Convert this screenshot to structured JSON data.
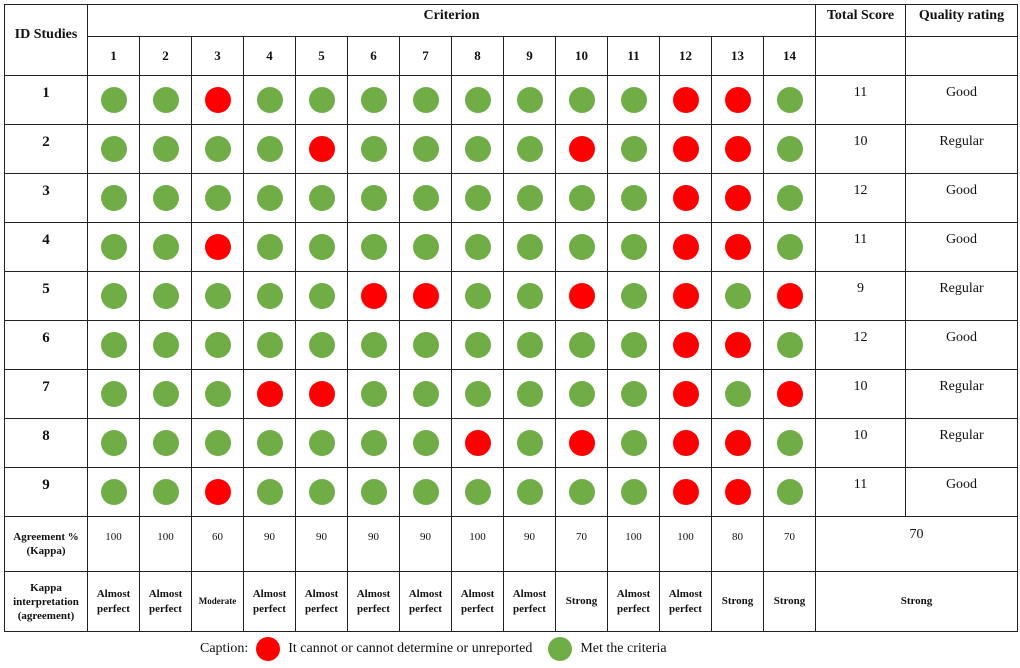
{
  "header": {
    "id_studies": "ID Studies",
    "criterion": "Criterion",
    "total_score": "Total Score",
    "quality_rating": "Quality rating",
    "criteria_numbers": [
      "1",
      "2",
      "3",
      "4",
      "5",
      "6",
      "7",
      "8",
      "9",
      "10",
      "11",
      "12",
      "13",
      "14"
    ]
  },
  "colors": {
    "met": "#70ad47",
    "not_met": "#ff0000"
  },
  "studies": [
    {
      "id": "1",
      "marks": [
        "met",
        "met",
        "no",
        "met",
        "met",
        "met",
        "met",
        "met",
        "met",
        "met",
        "met",
        "no",
        "no",
        "met"
      ],
      "score": "11",
      "rating": "Good"
    },
    {
      "id": "2",
      "marks": [
        "met",
        "met",
        "met",
        "met",
        "no",
        "met",
        "met",
        "met",
        "met",
        "no",
        "met",
        "no",
        "no",
        "met"
      ],
      "score": "10",
      "rating": "Regular"
    },
    {
      "id": "3",
      "marks": [
        "met",
        "met",
        "met",
        "met",
        "met",
        "met",
        "met",
        "met",
        "met",
        "met",
        "met",
        "no",
        "no",
        "met"
      ],
      "score": "12",
      "rating": "Good"
    },
    {
      "id": "4",
      "marks": [
        "met",
        "met",
        "no",
        "met",
        "met",
        "met",
        "met",
        "met",
        "met",
        "met",
        "met",
        "no",
        "no",
        "met"
      ],
      "score": "11",
      "rating": "Good"
    },
    {
      "id": "5",
      "marks": [
        "met",
        "met",
        "met",
        "met",
        "met",
        "no",
        "no",
        "met",
        "met",
        "no",
        "met",
        "no",
        "met",
        "no"
      ],
      "score": "9",
      "rating": "Regular"
    },
    {
      "id": "6",
      "marks": [
        "met",
        "met",
        "met",
        "met",
        "met",
        "met",
        "met",
        "met",
        "met",
        "met",
        "met",
        "no",
        "no",
        "met"
      ],
      "score": "12",
      "rating": "Good"
    },
    {
      "id": "7",
      "marks": [
        "met",
        "met",
        "met",
        "no",
        "no",
        "met",
        "met",
        "met",
        "met",
        "met",
        "met",
        "no",
        "met",
        "no"
      ],
      "score": "10",
      "rating": "Regular"
    },
    {
      "id": "8",
      "marks": [
        "met",
        "met",
        "met",
        "met",
        "met",
        "met",
        "met",
        "no",
        "met",
        "no",
        "met",
        "no",
        "no",
        "met"
      ],
      "score": "10",
      "rating": "Regular"
    },
    {
      "id": "9",
      "marks": [
        "met",
        "met",
        "no",
        "met",
        "met",
        "met",
        "met",
        "met",
        "met",
        "met",
        "met",
        "no",
        "no",
        "met"
      ],
      "score": "11",
      "rating": "Good"
    }
  ],
  "agreement": {
    "label_line1": "Agreement %",
    "label_line2": "(Kappa)",
    "values": [
      "100",
      "100",
      "60",
      "90",
      "90",
      "90",
      "90",
      "100",
      "90",
      "70",
      "100",
      "100",
      "80",
      "70"
    ],
    "overall": "70"
  },
  "kappa": {
    "label_line1": "Kappa",
    "label_line2": "interpretation",
    "label_line3": "(agreement)",
    "values": [
      [
        "Almost",
        "perfect"
      ],
      [
        "Almost",
        "perfect"
      ],
      [
        "Moderate"
      ],
      [
        "Almost",
        "perfect"
      ],
      [
        "Almost",
        "perfect"
      ],
      [
        "Almost",
        "perfect"
      ],
      [
        "Almost",
        "perfect"
      ],
      [
        "Almost",
        "perfect"
      ],
      [
        "Almost",
        "perfect"
      ],
      [
        "Strong"
      ],
      [
        "Almost",
        "perfect"
      ],
      [
        "Almost",
        "perfect"
      ],
      [
        "Strong"
      ],
      [
        "Strong"
      ]
    ],
    "overall": "Strong"
  },
  "caption": {
    "label": "Caption:",
    "not_met_text": "It cannot or cannot determine or unreported",
    "met_text": "Met the criteria"
  }
}
